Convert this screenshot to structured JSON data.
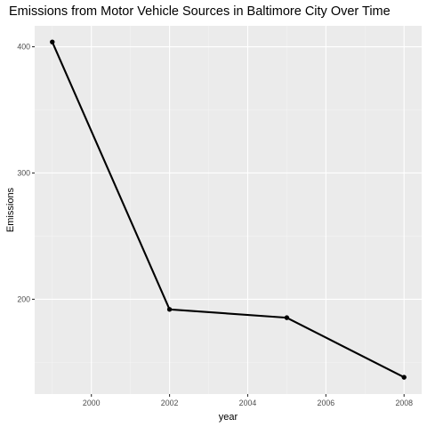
{
  "chart_data": {
    "type": "line",
    "title": "Emissions from Motor Vehicle Sources in Baltimore City Over Time",
    "xlabel": "year",
    "ylabel": "Emissions",
    "x": [
      1999,
      2002,
      2005,
      2008
    ],
    "series": [
      {
        "values": [
          403.8,
          192.0,
          185.4,
          138.2
        ]
      }
    ],
    "xlim": [
      1998.55,
      2008.45
    ],
    "ylim": [
      124.9,
      416.6
    ],
    "x_ticks": [
      2000,
      2002,
      2004,
      2006,
      2008
    ],
    "x_tick_labels": [
      "2000",
      "2002",
      "2004",
      "2006",
      "2008"
    ],
    "y_ticks": [
      200,
      300,
      400
    ],
    "y_tick_labels": [
      "200",
      "300",
      "400"
    ],
    "x_minor_ticks": [
      1999,
      2001,
      2003,
      2005,
      2007
    ],
    "y_minor_ticks": [
      150,
      250,
      350
    ],
    "grid": true,
    "legend": "none",
    "colors": {
      "panel_background": "#EBEBEB",
      "grid_major": "#FFFFFF",
      "grid_minor": "#F5F5F5",
      "line": "#000000",
      "tick_text": "#4D4D4D",
      "tick_mark": "#333333"
    }
  }
}
